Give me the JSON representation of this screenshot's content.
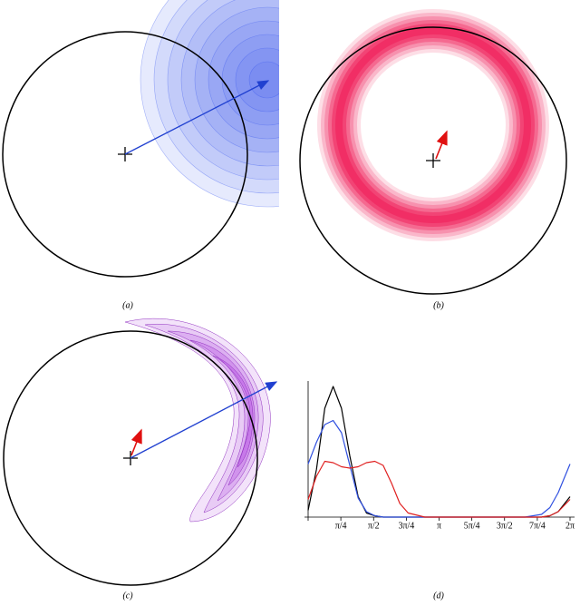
{
  "panels": [
    {
      "label": "(a)"
    },
    {
      "label": "(b)"
    },
    {
      "label": "(c)"
    },
    {
      "label": "(d)"
    }
  ],
  "chart_data": {
    "type": "line",
    "x": [
      0,
      0.2,
      0.4,
      0.6,
      0.8,
      1.0,
      1.2,
      1.4,
      1.6,
      1.8,
      2.0,
      2.2,
      2.4,
      2.8,
      3.2,
      3.6,
      4.0,
      4.4,
      4.8,
      5.2,
      5.6,
      5.8,
      6.0,
      6.283
    ],
    "series": [
      {
        "color": "#000000",
        "values": [
          0.05,
          0.35,
          0.8,
          0.96,
          0.8,
          0.45,
          0.15,
          0.03,
          0.01,
          0,
          0,
          0,
          0,
          0,
          0,
          0,
          0,
          0,
          0,
          0,
          0,
          0.01,
          0.04,
          0.15
        ]
      },
      {
        "color": "#3050e0",
        "values": [
          0.39,
          0.55,
          0.68,
          0.71,
          0.62,
          0.38,
          0.14,
          0.04,
          0.01,
          0,
          0,
          0,
          0,
          0,
          0,
          0,
          0,
          0,
          0,
          0,
          0.02,
          0.07,
          0.18,
          0.39
        ]
      },
      {
        "color": "#e02020",
        "values": [
          0.13,
          0.3,
          0.41,
          0.4,
          0.37,
          0.36,
          0.37,
          0.4,
          0.41,
          0.38,
          0.25,
          0.1,
          0.03,
          0,
          0,
          0,
          0,
          0,
          0,
          0,
          0,
          0.01,
          0.04,
          0.13
        ]
      }
    ],
    "xlim": [
      0,
      6.283
    ],
    "ylim": [
      0,
      1
    ],
    "xticks": [
      {
        "value": 0.785,
        "label": "π/4"
      },
      {
        "value": 1.571,
        "label": "π/2"
      },
      {
        "value": 2.356,
        "label": "3π/4"
      },
      {
        "value": 3.142,
        "label": "π"
      },
      {
        "value": 3.927,
        "label": "5π/4"
      },
      {
        "value": 4.712,
        "label": "3π/2"
      },
      {
        "value": 5.498,
        "label": "7π/4"
      },
      {
        "value": 6.283,
        "label": "2π"
      }
    ]
  }
}
